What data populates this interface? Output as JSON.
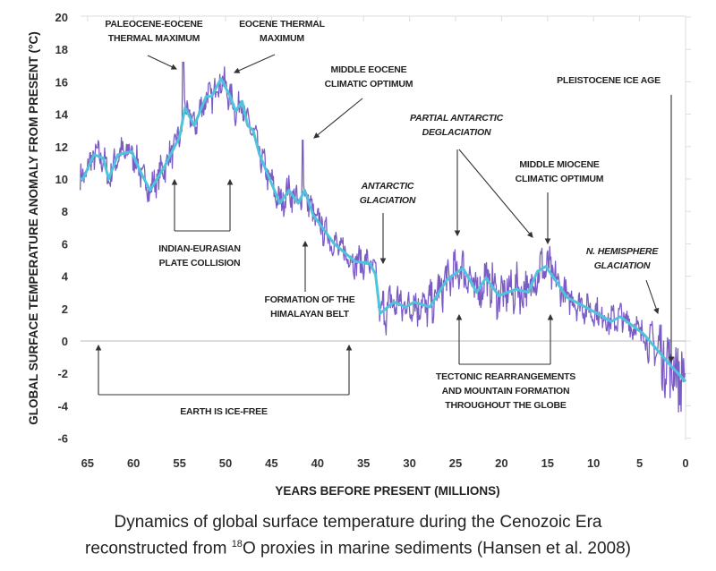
{
  "chart_data": {
    "type": "line",
    "title": "",
    "xlabel": "YEARS BEFORE PRESENT (MILLIONS)",
    "ylabel": "GLOBAL SURFACE TEMPERATURE ANOMALY FROM PRESENT (°C)",
    "xlim": [
      65.8,
      0
    ],
    "ylim": [
      -6,
      20
    ],
    "x_ticks": [
      65,
      60,
      55,
      50,
      45,
      40,
      35,
      30,
      25,
      20,
      15,
      10,
      5,
      0
    ],
    "y_ticks": [
      20,
      18,
      16,
      14,
      12,
      10,
      8,
      6,
      4,
      2,
      0,
      -2,
      -4,
      -6
    ],
    "reference_line_y": 0,
    "series": [
      {
        "name": "smoothed",
        "color": "#4fc3dc",
        "x": [
          65.8,
          65.5,
          64.3,
          63.3,
          62.7,
          61.7,
          60.2,
          59.3,
          58.2,
          56.7,
          55,
          54.4,
          53.4,
          52.1,
          51.5,
          50.5,
          49.5,
          48.9,
          48.2,
          47.6,
          47,
          46.3,
          44.1,
          43.1,
          42.1,
          41.4,
          40.5,
          38.2,
          35.9,
          34.3,
          33.7,
          33.2,
          31.7,
          30.4,
          29.5,
          27.8,
          25.9,
          24.2,
          22.7,
          21.7,
          20.3,
          18.4,
          17.1,
          16.1,
          15.2,
          14.2,
          12.9,
          9.6,
          8.1,
          7.1,
          5.4,
          4.5,
          1.8,
          0
        ],
        "y": [
          10,
          10,
          11.5,
          11.3,
          10,
          11.5,
          11.7,
          10.5,
          9.3,
          10.7,
          12.6,
          14.4,
          13.3,
          15.1,
          15.1,
          16.2,
          15.1,
          14.2,
          14.8,
          13.3,
          13,
          11.5,
          8.5,
          9.3,
          8.5,
          9.3,
          7.8,
          6,
          4.9,
          4.8,
          4.1,
          1.7,
          2.4,
          2.1,
          2.4,
          2.1,
          3.8,
          4.5,
          3,
          3.9,
          2.8,
          3.2,
          3,
          4.3,
          4.6,
          3.8,
          2.7,
          1.7,
          1.2,
          1.5,
          0.8,
          0.4,
          -1.4,
          -2.5
        ]
      },
      {
        "name": "raw proxy record",
        "color": "#7b5cc4",
        "spikes": [
          {
            "x": 54.6,
            "y": 17.2
          },
          {
            "x": 41.6,
            "y": 12.4
          }
        ]
      }
    ],
    "annotations": {
      "petm": [
        "PALEOCENE-EOCENE",
        "THERMAL MAXIMUM"
      ],
      "etm": [
        "EOCENE THERMAL",
        "MAXIMUM"
      ],
      "meco": [
        "MIDDLE EOCENE",
        "CLIMATIC OPTIMUM"
      ],
      "pleistocene": [
        "PLEISTOCENE ICE AGE"
      ],
      "partial": [
        "PARTIAL ANTARCTIC",
        "DEGLACIATION"
      ],
      "mmco": [
        "MIDDLE MIOCENE",
        "CLIMATIC OPTIMUM"
      ],
      "antarctic": [
        "ANTARCTIC",
        "GLACIATION"
      ],
      "nhem": [
        "N. HEMISPHERE",
        "GLACIATION"
      ],
      "indian": [
        "INDIAN-EURASIAN",
        "PLATE COLLISION"
      ],
      "himalaya": [
        "FORMATION OF THE",
        "HIMALAYAN BELT"
      ],
      "icefree": [
        "EARTH IS ICE-FREE"
      ],
      "tectonic": [
        "TECTONIC REARRANGEMENTS",
        "AND MOUNTAIN FORMATION",
        "THROUGHOUT THE GLOBE"
      ]
    }
  },
  "caption": {
    "line1": "Dynamics of global surface temperature during the Cenozoic Era",
    "line2_pre": "reconstructed from ",
    "line2_sup": "18",
    "line2_post": "O proxies in marine sediments (Hansen et al. 2008)"
  }
}
